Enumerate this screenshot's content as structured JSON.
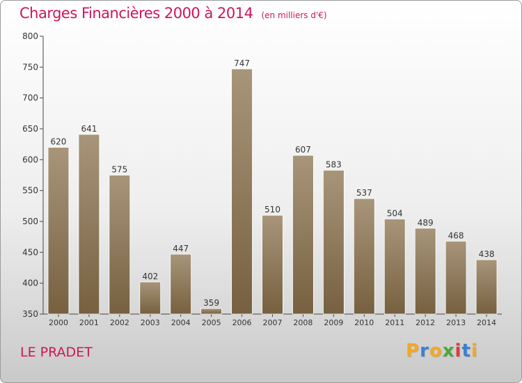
{
  "title": "Charges Financières 2000 à 2014",
  "subtitle": "(en milliers d'€)",
  "commune": "LE PRADET",
  "logo": {
    "letters": [
      "P",
      "r",
      "o",
      "x",
      "i",
      "t",
      "i"
    ],
    "colors": [
      "#f5a623",
      "#3a7fd5",
      "#f5a623",
      "#4aa838",
      "#e03a3a",
      "#3a7fd5",
      "#f5a623"
    ]
  },
  "colors": {
    "title": "#d0145a",
    "bar_top": "#a8957a",
    "bar_bottom": "#76603f",
    "axis": "#444444"
  },
  "chart_data": {
    "type": "bar",
    "categories": [
      "2000",
      "2001",
      "2002",
      "2003",
      "2004",
      "2005",
      "2006",
      "2007",
      "2008",
      "2009",
      "2010",
      "2011",
      "2012",
      "2013",
      "2014"
    ],
    "values": [
      620,
      641,
      575,
      402,
      447,
      359,
      747,
      510,
      607,
      583,
      537,
      504,
      489,
      468,
      438
    ],
    "ylim": [
      350,
      800
    ],
    "yticks": [
      350,
      400,
      450,
      500,
      550,
      600,
      650,
      700,
      750,
      800
    ],
    "grid": false,
    "data_labels": true
  }
}
